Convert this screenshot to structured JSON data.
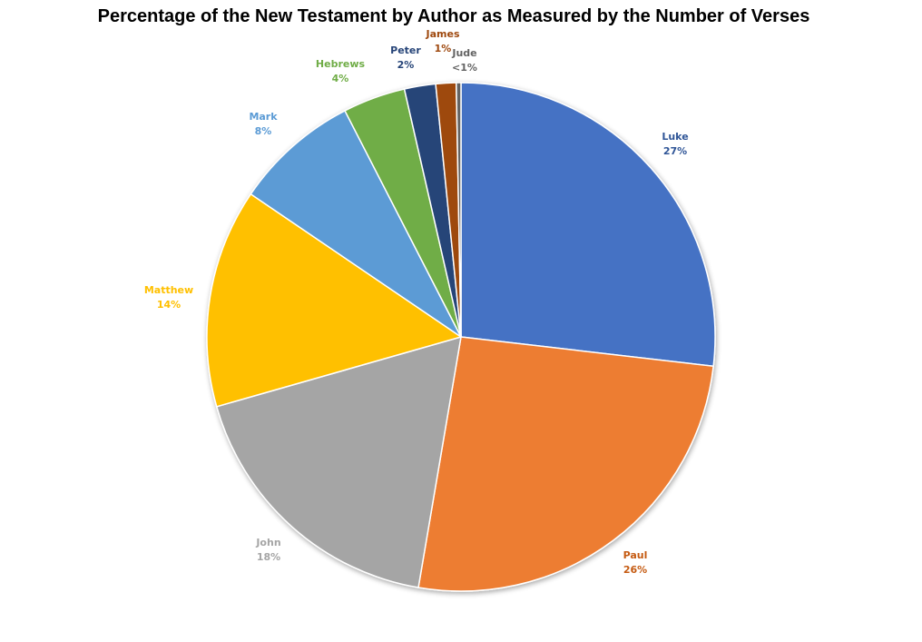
{
  "chart_data": {
    "type": "pie",
    "title": "Percentage of the New Testament by Author as Measured by the Number of Verses",
    "start_angle_deg": 0,
    "direction": "clockwise",
    "legend": "none",
    "slices": [
      {
        "name": "Luke",
        "value": 27,
        "label": "27%",
        "color": "#4472C4",
        "label_color": "#2F5597"
      },
      {
        "name": "Paul",
        "value": 26,
        "label": "26%",
        "color": "#ED7D31",
        "label_color": "#C55A11"
      },
      {
        "name": "John",
        "value": 18,
        "label": "18%",
        "color": "#A5A5A5",
        "label_color": "#A5A5A5"
      },
      {
        "name": "Matthew",
        "value": 14,
        "label": "14%",
        "color": "#FFC000",
        "label_color": "#FFC000"
      },
      {
        "name": "Mark",
        "value": 8,
        "label": "8%",
        "color": "#5B9BD5",
        "label_color": "#5B9BD5"
      },
      {
        "name": "Hebrews",
        "value": 4,
        "label": "4%",
        "color": "#70AD47",
        "label_color": "#70AD47"
      },
      {
        "name": "Peter",
        "value": 2,
        "label": "2%",
        "color": "#264478",
        "label_color": "#264478"
      },
      {
        "name": "James",
        "value": 1.3,
        "label": "1%",
        "color": "#9E480E",
        "label_color": "#9E480E"
      },
      {
        "name": "Jude",
        "value": 0.3,
        "label": "<1%",
        "color": "#636363",
        "label_color": "#636363"
      }
    ]
  }
}
